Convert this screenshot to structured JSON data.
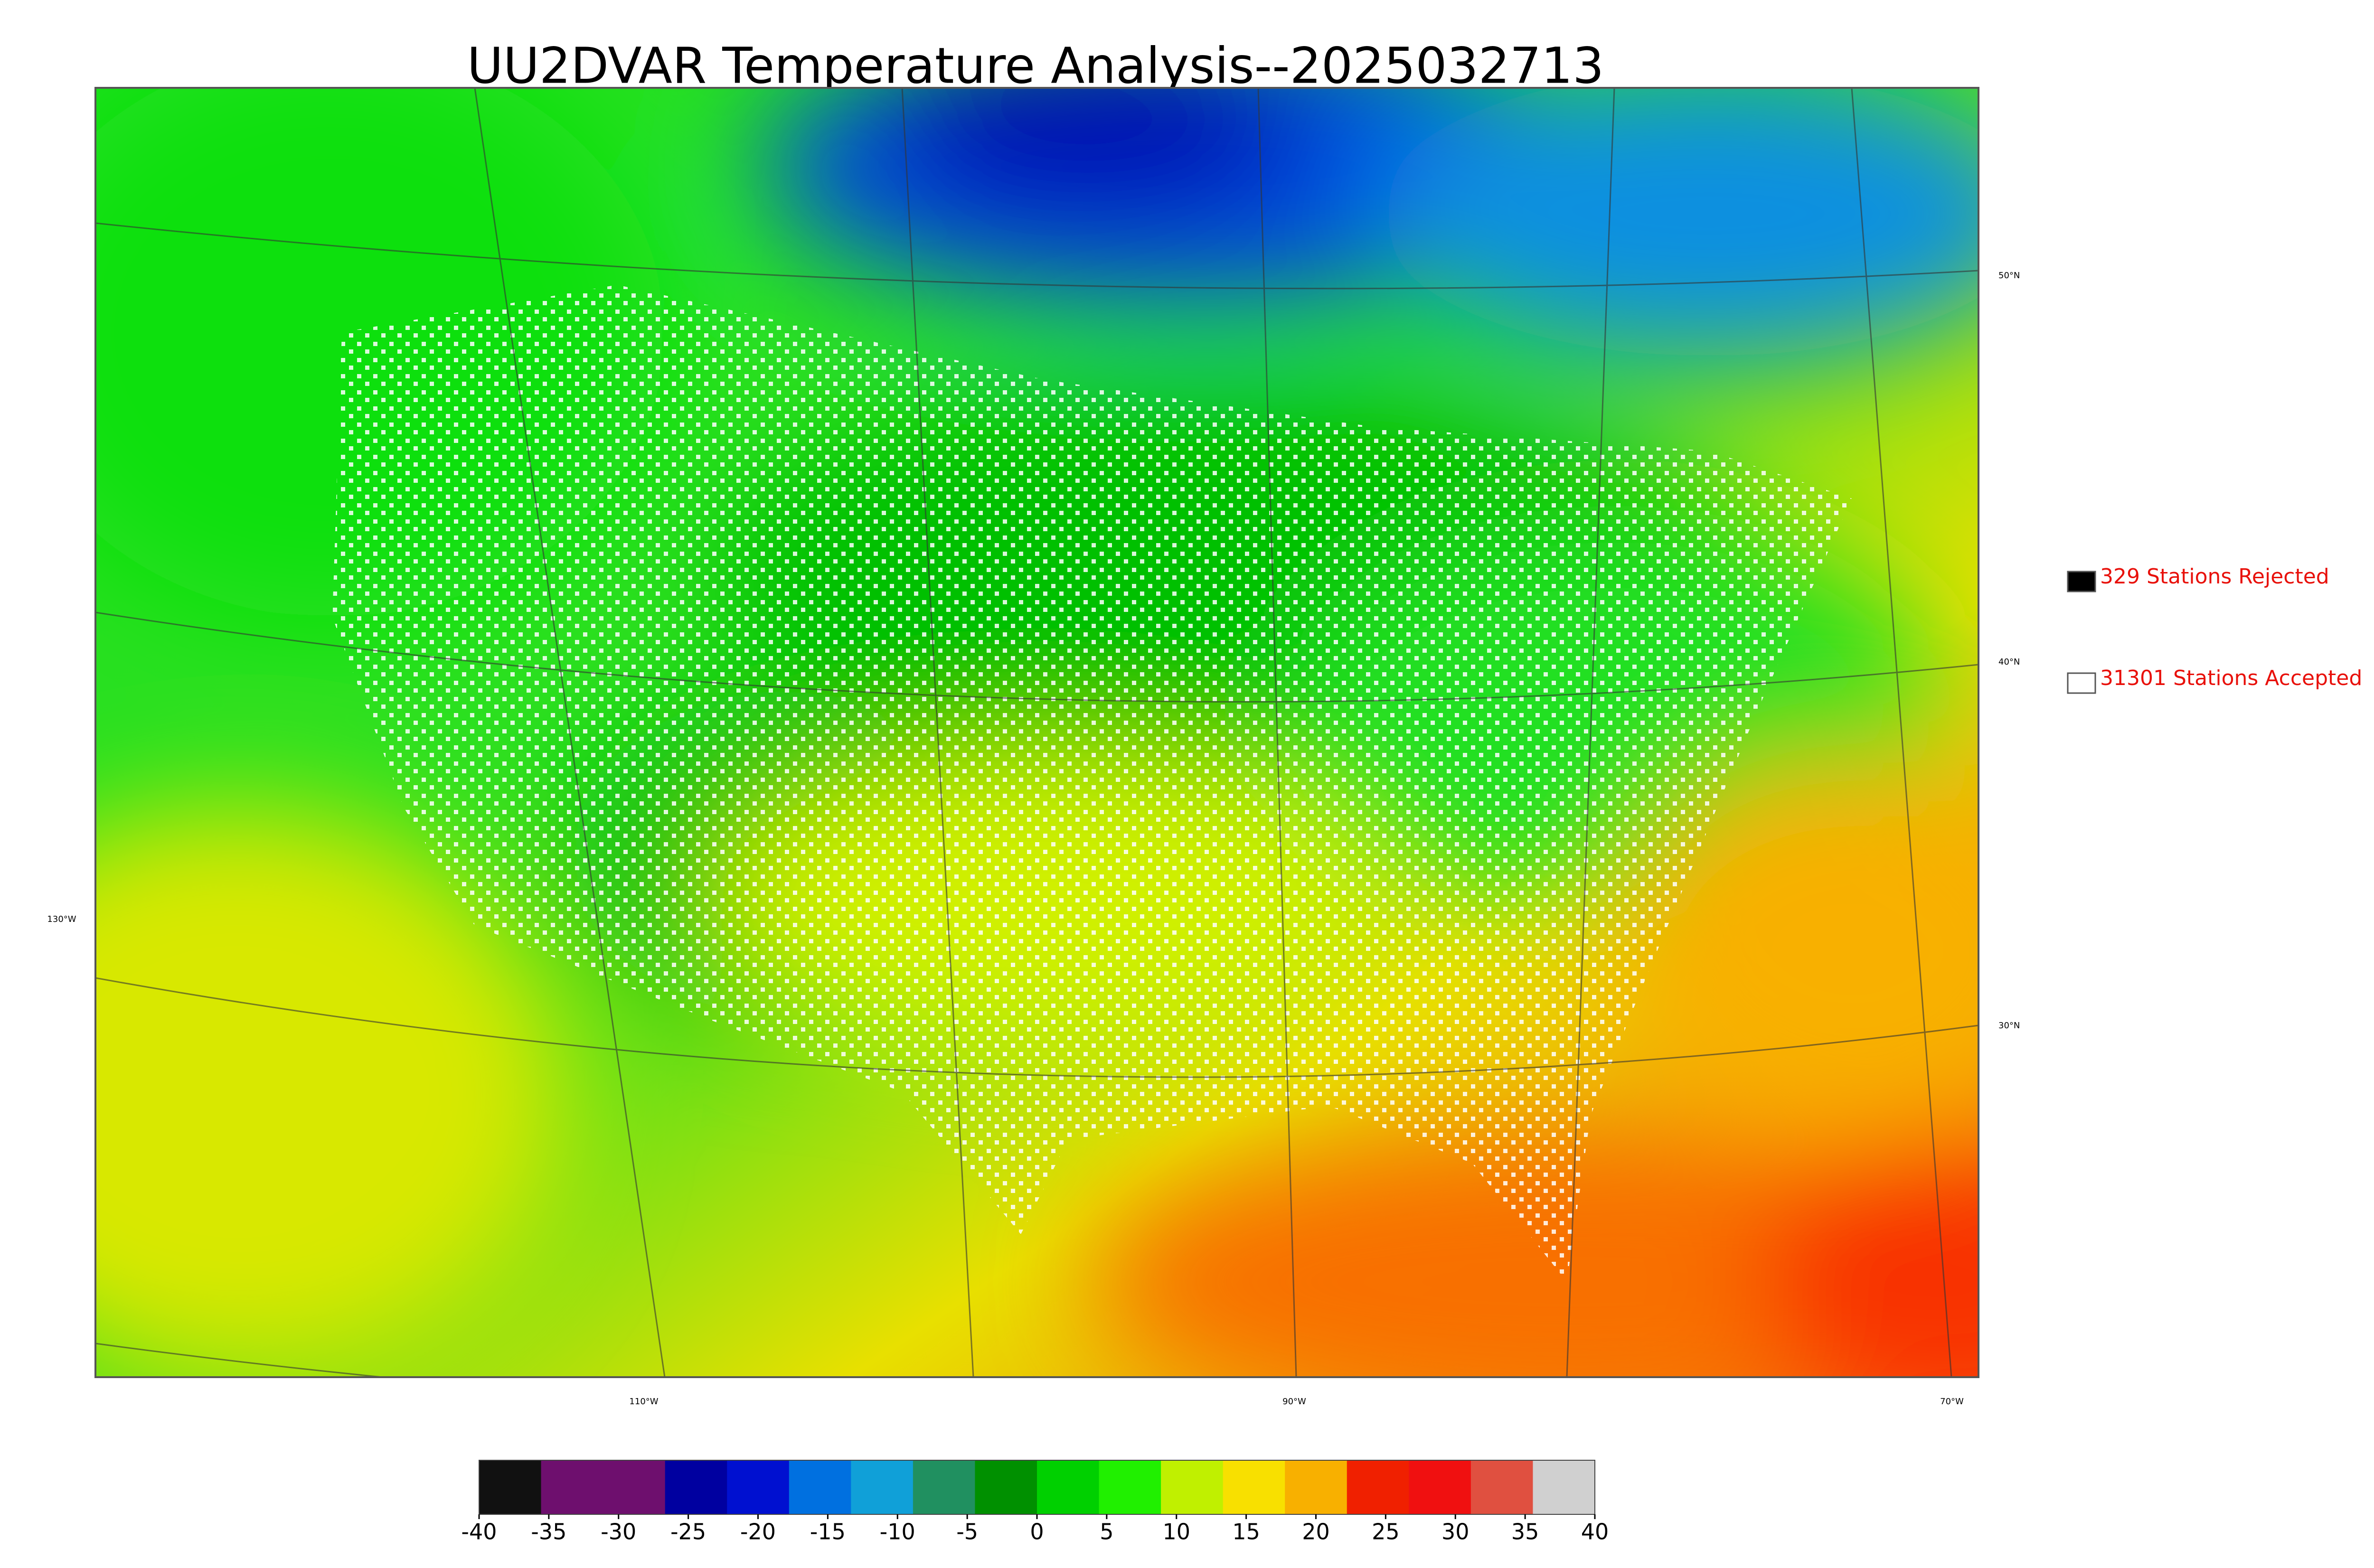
{
  "title": "UU2DVAR Temperature Analysis--2025032713",
  "legend": [
    {
      "label": "329 Stations Rejected",
      "color": "#000000"
    },
    {
      "label": "31301 Stations Accepted",
      "color": "#ffffff"
    }
  ],
  "latitude_labels": [
    "50°N",
    "40°N",
    "30°N"
  ],
  "longitude_labels": [
    "130°W",
    "110°W",
    "90°W",
    "70°W"
  ],
  "colorbar": {
    "lim": [
      -40,
      40
    ],
    "ticks": [
      -40,
      -35,
      -30,
      -25,
      -20,
      -15,
      -10,
      -5,
      0,
      5,
      10,
      15,
      20,
      25,
      30,
      35,
      40
    ],
    "colors": [
      "#111111",
      "#6e0f6e",
      "#6e0f6e",
      "#0000a0",
      "#0010d0",
      "#0070e0",
      "#10a0d8",
      "#209060",
      "#009000",
      "#00d000",
      "#20f000",
      "#c0f000",
      "#f8e000",
      "#f8b000",
      "#f02000",
      "#f01010",
      "#e05040",
      "#d0d0d0"
    ]
  }
}
